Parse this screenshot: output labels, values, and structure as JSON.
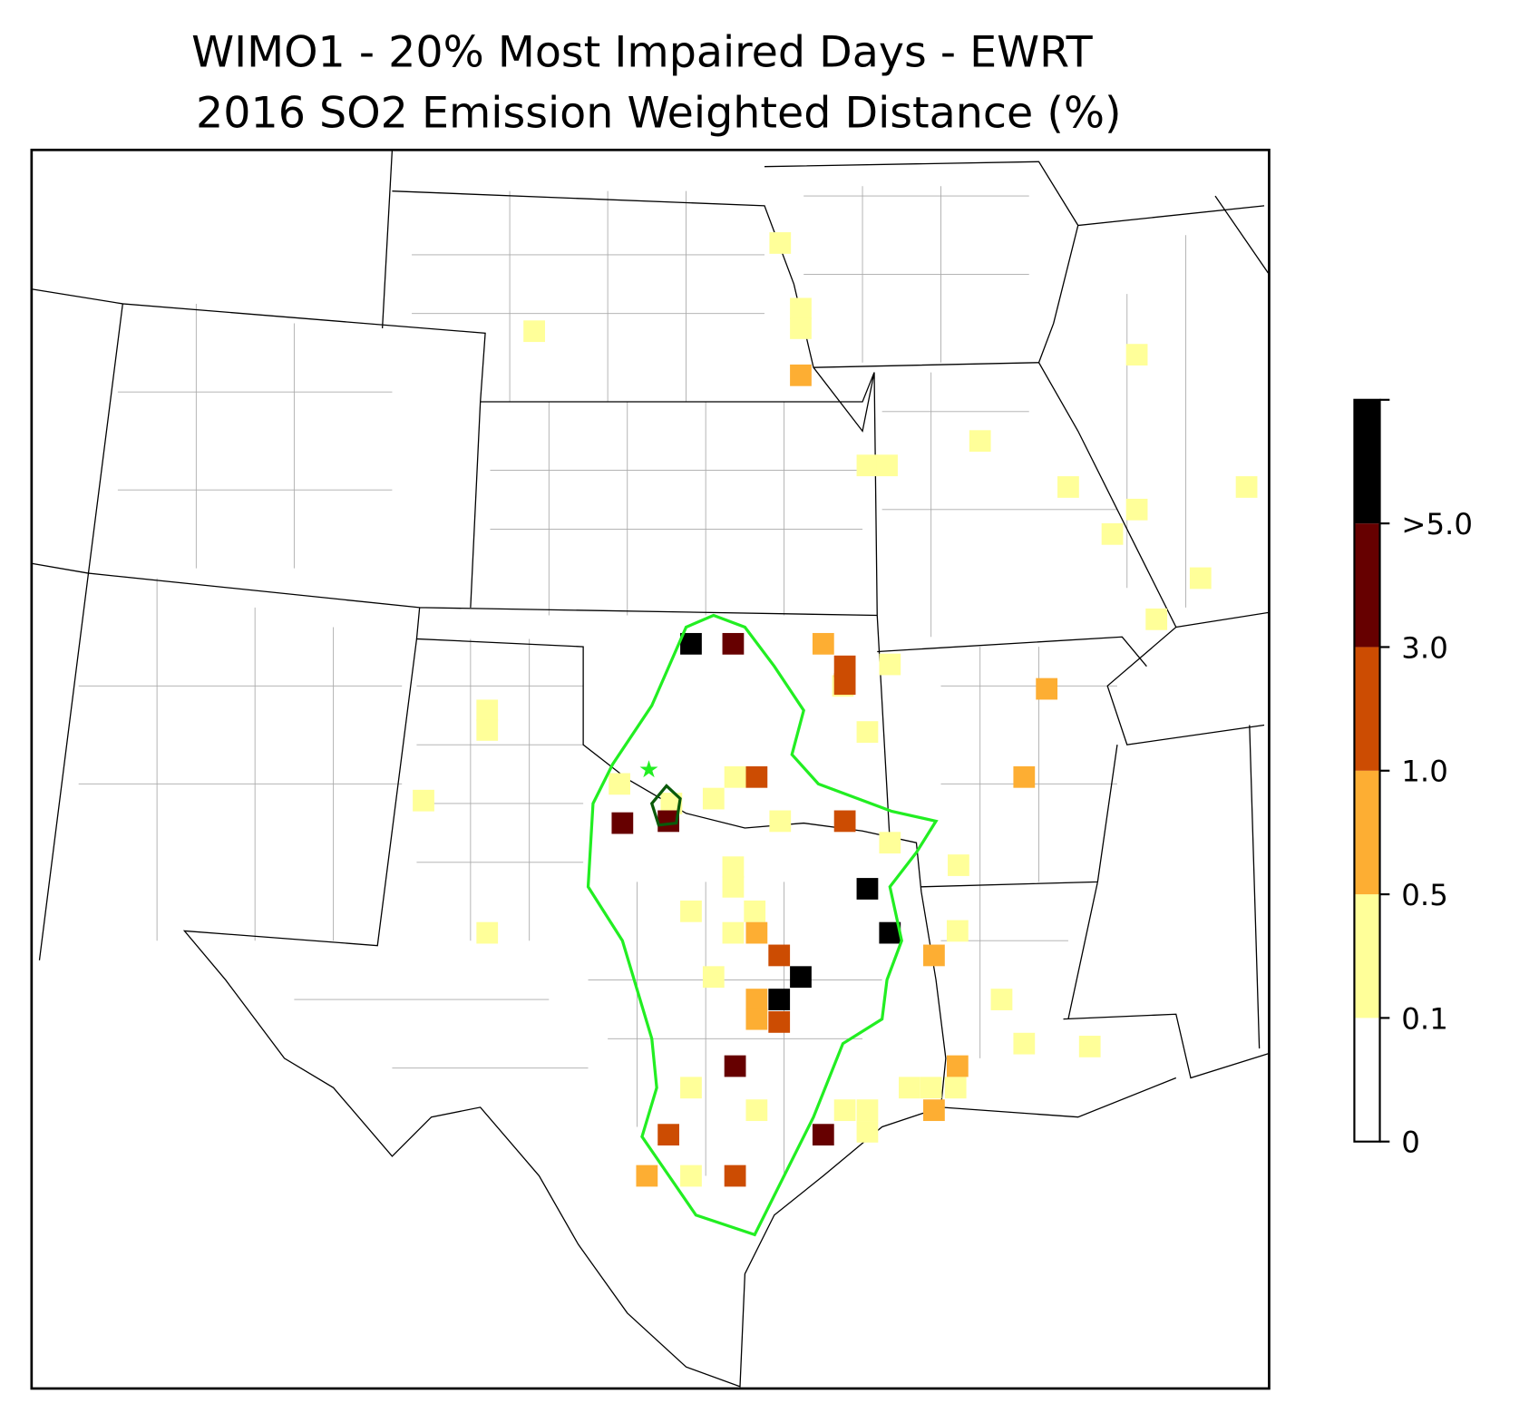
{
  "map": {
    "title": "WIMO1 - 20% Most Impaired Days - EWRT",
    "subtitle": "2016 SO2 Emission Weighted Distance (%)",
    "colorbar": {
      "ticks": [
        0,
        0.1,
        0.5,
        {
          "value": 1,
          "label": "1.0"
        },
        {
          "value": 3,
          "label": "3.0"
        },
        {
          "value": 5,
          "label": ">5.0"
        }
      ],
      "colors": [
        "#ffffff",
        "#ffff99",
        "#fdae33",
        "#cc4c02",
        "#660000",
        "#000000"
      ]
    }
  }
}
